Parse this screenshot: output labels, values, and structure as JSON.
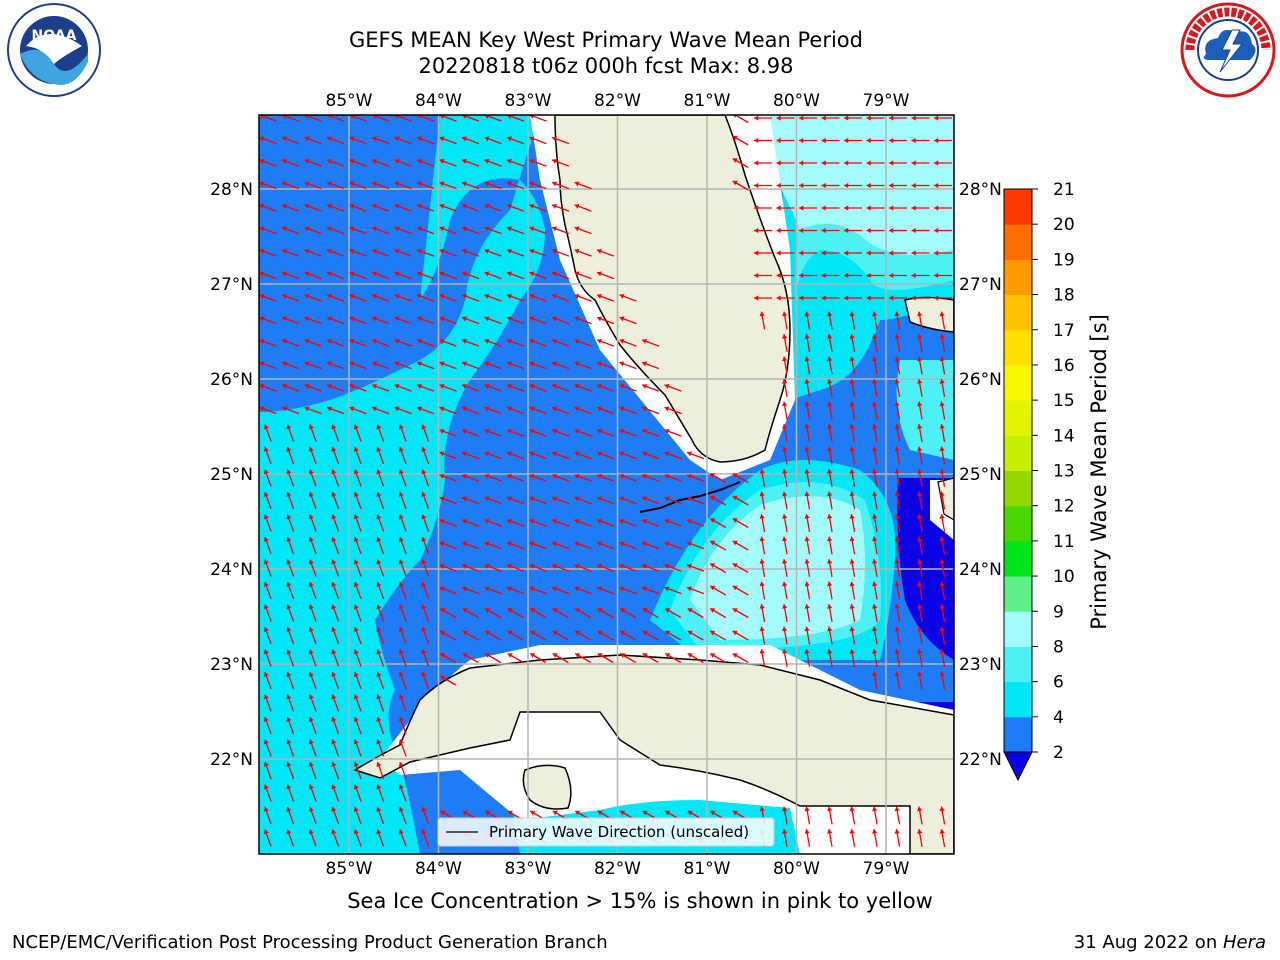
{
  "header": {
    "title_line1": "GEFS MEAN Key West Primary Wave Mean Period",
    "title_line2": "20220818 t06z 000h fcst   Max: 8.98"
  },
  "logos": {
    "left": {
      "icon": "noaa-logo",
      "text": "NOAA"
    },
    "right": {
      "icon": "nws-logo",
      "text": "NATIONAL WEATHER SERVICE"
    }
  },
  "map": {
    "lon_labels": [
      "85°W",
      "84°W",
      "83°W",
      "82°W",
      "81°W",
      "80°W",
      "79°W"
    ],
    "lat_labels": [
      "28°N",
      "27°N",
      "26°N",
      "25°N",
      "24°N",
      "23°N",
      "22°N"
    ],
    "legend_label": "Primary Wave Direction (unscaled)",
    "colors": {
      "land": "#eeeedd",
      "period_2_4": "#1e7cf7",
      "period_4_6": "#00e7f7",
      "period_6_8": "#4df0f5",
      "period_8_9": "#a3fcfb",
      "below_2": "#0b03e6",
      "arrow": "#ff0000",
      "grid": "#b4b4b4"
    }
  },
  "colorbar": {
    "label": "Primary Wave Mean Period [s]",
    "ticks": [
      "2",
      "4",
      "6",
      "8",
      "9",
      "10",
      "11",
      "12",
      "13",
      "14",
      "15",
      "16",
      "17",
      "18",
      "19",
      "20",
      "21"
    ],
    "colors": [
      "#1e7cf7",
      "#00e7f7",
      "#4df0f5",
      "#a3fcfb",
      "#5ef08a",
      "#00e41a",
      "#4cd700",
      "#97d700",
      "#c6f000",
      "#e4f400",
      "#f7f700",
      "#fde000",
      "#ffc000",
      "#ff9a00",
      "#ff6e00",
      "#ff3a00",
      "#ff0000"
    ],
    "under_color": "#0b03e6"
  },
  "note": "Sea Ice Concentration > 15% is shown in pink to yellow",
  "footer": {
    "left": "NCEP/EMC/Verification Post Processing Product Generation Branch",
    "date": "31 Aug 2022 on ",
    "machine": "Hera"
  }
}
